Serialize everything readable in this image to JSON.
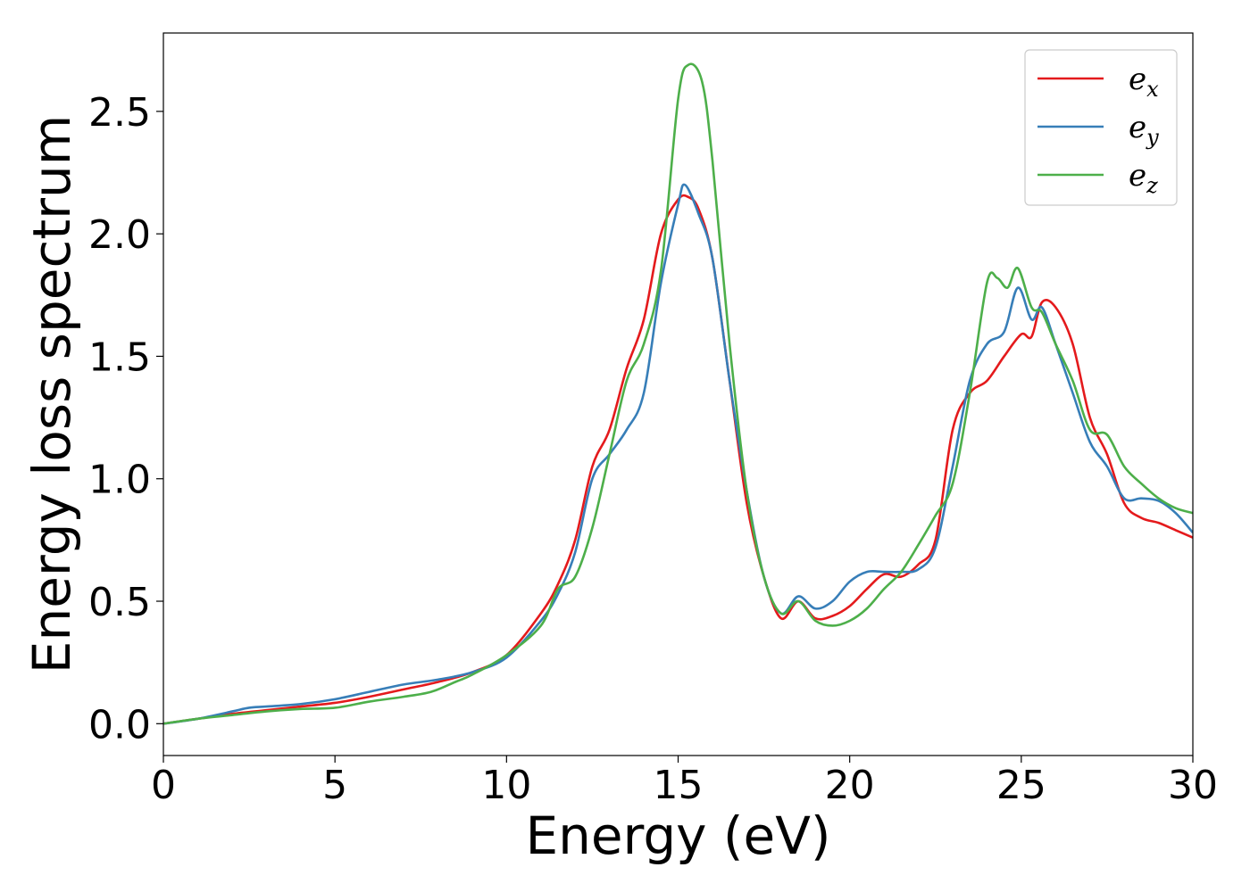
{
  "chart_data": {
    "type": "line",
    "title": "",
    "xlabel": "Energy (eV)",
    "ylabel": "Energy loss spectrum",
    "xlim": [
      0,
      30
    ],
    "ylim": [
      -0.13,
      2.82
    ],
    "xticks": [
      "0",
      "5",
      "10",
      "15",
      "20",
      "25",
      "30"
    ],
    "yticks": [
      "0.0",
      "0.5",
      "1.0",
      "1.5",
      "2.0",
      "2.5"
    ],
    "grid": false,
    "legend_position": "top-right",
    "series": [
      {
        "name": "e_x",
        "label_base": "e",
        "label_sub": "x",
        "color": "#e41a1c",
        "x": [
          0,
          1,
          2,
          3,
          4,
          5,
          6,
          7,
          8,
          9,
          10,
          11,
          11.5,
          12,
          12.5,
          13,
          13.5,
          14,
          14.5,
          15,
          15.3,
          15.6,
          16,
          16.5,
          17,
          17.5,
          18,
          18.5,
          19,
          19.5,
          20,
          20.5,
          21,
          21.5,
          22,
          22.5,
          23,
          23.5,
          24,
          24.5,
          25,
          25.3,
          25.6,
          26,
          26.5,
          27,
          27.5,
          28,
          28.5,
          29,
          29.5,
          30
        ],
        "y": [
          0,
          0.02,
          0.04,
          0.055,
          0.07,
          0.085,
          0.11,
          0.14,
          0.17,
          0.21,
          0.28,
          0.45,
          0.57,
          0.75,
          1.05,
          1.2,
          1.45,
          1.65,
          2.0,
          2.14,
          2.15,
          2.1,
          1.9,
          1.4,
          0.9,
          0.6,
          0.43,
          0.5,
          0.43,
          0.44,
          0.48,
          0.55,
          0.61,
          0.6,
          0.65,
          0.75,
          1.2,
          1.35,
          1.4,
          1.5,
          1.59,
          1.58,
          1.72,
          1.7,
          1.55,
          1.25,
          1.1,
          0.9,
          0.84,
          0.82,
          0.79,
          0.76
        ]
      },
      {
        "name": "e_y",
        "label_base": "e",
        "label_sub": "y",
        "color": "#377eb8",
        "x": [
          0,
          1,
          2,
          2.5,
          3,
          4,
          5,
          6,
          7,
          8,
          9,
          10,
          11,
          11.5,
          12,
          12.5,
          13,
          13.5,
          14,
          14.5,
          15,
          15.2,
          15.6,
          16,
          16.5,
          17,
          17.5,
          18,
          18.5,
          19,
          19.5,
          20,
          20.5,
          21,
          21.5,
          22,
          22.5,
          23,
          23.5,
          24,
          24.5,
          24.9,
          25.3,
          25.6,
          26,
          26.5,
          27,
          27.5,
          28,
          28.5,
          29,
          29.5,
          30
        ],
        "y": [
          0,
          0.02,
          0.05,
          0.065,
          0.07,
          0.08,
          0.1,
          0.13,
          0.16,
          0.18,
          0.21,
          0.27,
          0.42,
          0.53,
          0.7,
          1.0,
          1.1,
          1.2,
          1.35,
          1.8,
          2.12,
          2.2,
          2.08,
          1.9,
          1.4,
          0.95,
          0.6,
          0.45,
          0.52,
          0.47,
          0.5,
          0.58,
          0.62,
          0.62,
          0.62,
          0.63,
          0.72,
          1.05,
          1.4,
          1.55,
          1.6,
          1.78,
          1.65,
          1.7,
          1.55,
          1.35,
          1.15,
          1.05,
          0.92,
          0.92,
          0.91,
          0.86,
          0.78
        ]
      },
      {
        "name": "e_z",
        "label_base": "e",
        "label_sub": "z",
        "color": "#4daf4a",
        "x": [
          0,
          1,
          2,
          3,
          4,
          5,
          6,
          7,
          7.8,
          8.5,
          9,
          10,
          11,
          11.5,
          12,
          12.5,
          13,
          13.5,
          14,
          14.5,
          15,
          15.3,
          15.7,
          16,
          16.5,
          17,
          17.5,
          18,
          18.5,
          19,
          19.5,
          20,
          20.5,
          21,
          21.5,
          22,
          22.5,
          23,
          23.5,
          24,
          24.3,
          24.6,
          24.9,
          25.3,
          25.6,
          26,
          26.5,
          27,
          27.5,
          28,
          28.5,
          29,
          29.5,
          30
        ],
        "y": [
          0,
          0.02,
          0.035,
          0.05,
          0.06,
          0.065,
          0.09,
          0.11,
          0.13,
          0.17,
          0.2,
          0.28,
          0.4,
          0.55,
          0.6,
          0.8,
          1.1,
          1.4,
          1.55,
          1.85,
          2.55,
          2.69,
          2.62,
          2.3,
          1.55,
          0.95,
          0.6,
          0.45,
          0.5,
          0.42,
          0.4,
          0.42,
          0.47,
          0.55,
          0.62,
          0.73,
          0.85,
          0.98,
          1.35,
          1.8,
          1.82,
          1.78,
          1.86,
          1.7,
          1.68,
          1.55,
          1.4,
          1.2,
          1.18,
          1.05,
          0.98,
          0.92,
          0.88,
          0.86
        ]
      }
    ]
  }
}
